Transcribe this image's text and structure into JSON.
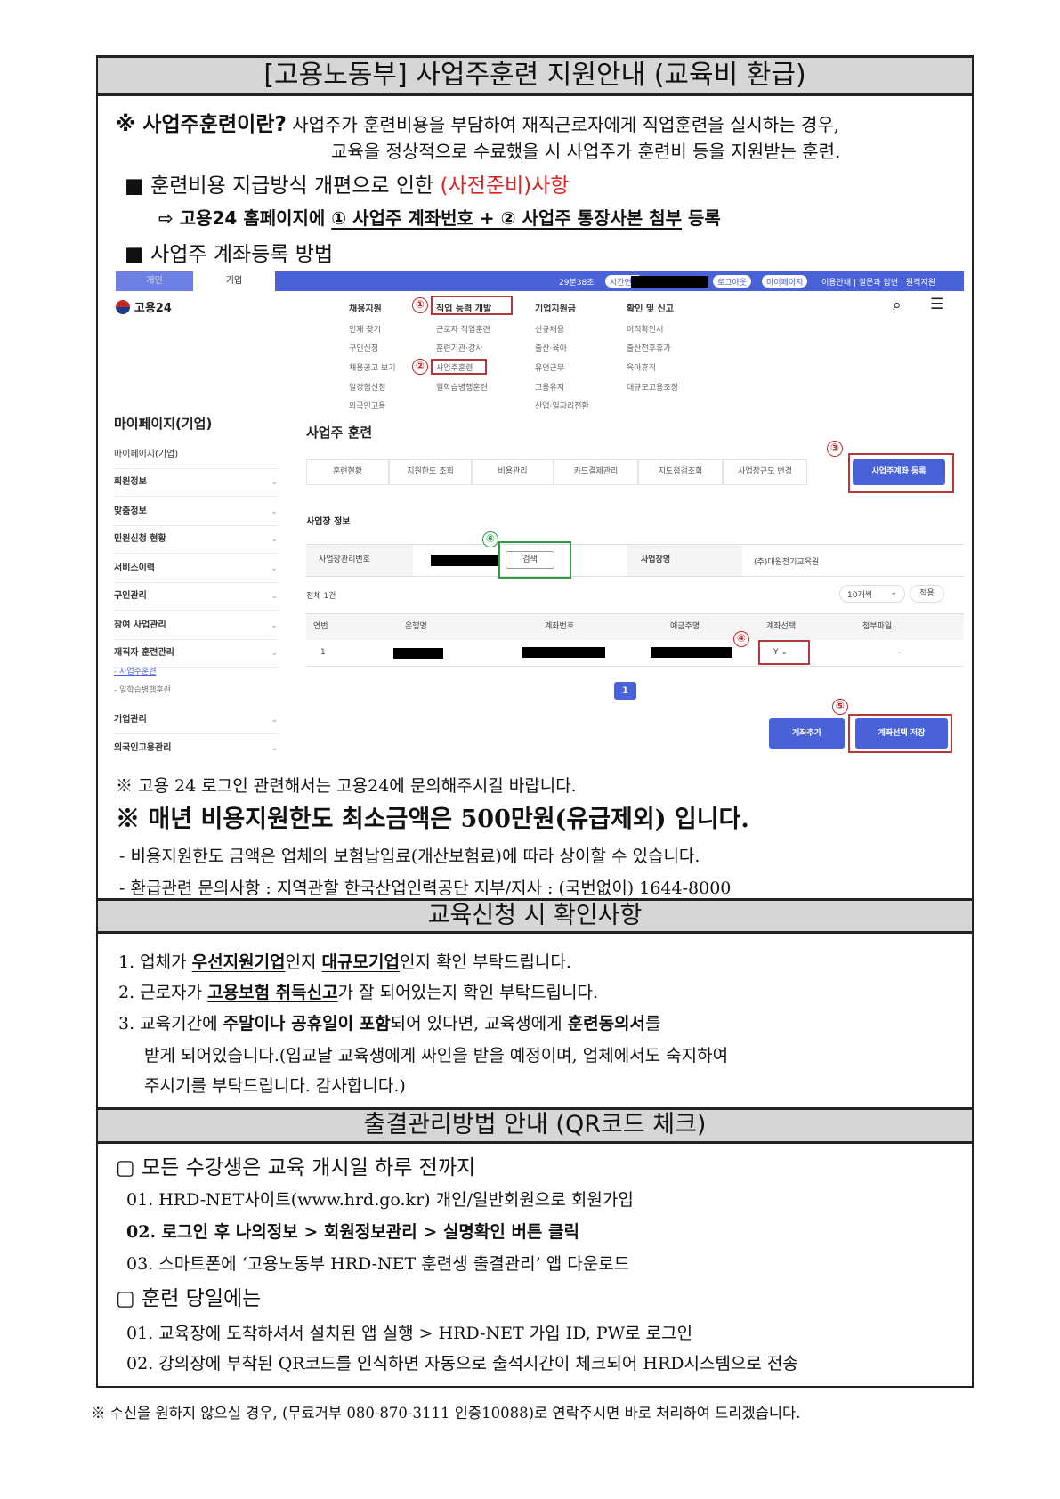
{
  "title": "[고용노동부] 사업주훈련 지원안내 (교육비 환급)",
  "intro": {
    "label": "※ 사업주훈련이란?",
    "line1": "사업주가 훈련비용을 부담하여 재직근로자에게 직업훈련을 실시하는 경우,",
    "line2": "교육을 정상적으로 수료했을 시 사업주가 훈련비 등을 지원받는 훈련."
  },
  "notice": {
    "bullet1_prefix": "■ 훈련비용 지급방식 개편으로 인한 ",
    "bullet1_red": "(사전준비)사항",
    "arrow_prefix": "⇨ 고용24 홈페이지에 ",
    "arrow_underlined": "① 사업주 계좌번호 + ② 사업주 통장사본 첨부",
    "arrow_suffix": " 등록",
    "bullet2": "■ 사업주 계좌등록 방법"
  },
  "screenshot": {
    "tabs": [
      "개인",
      "기업"
    ],
    "timer": "29분38초",
    "extend": "시간연장",
    "logout": "로그아웃",
    "mypage": "마이페이지",
    "util_links": "이용안내 | 질문과 답변 | 원격지원",
    "logo": "고용24",
    "nav": [
      {
        "heading": "채용지원",
        "items": [
          "인재 찾기",
          "구인신청",
          "채용공고 보기",
          "일경험신청",
          "외국인고용"
        ]
      },
      {
        "heading": "직업 능력 개발",
        "items": [
          "근로자 직업훈련",
          "훈련기관·강사",
          "사업주훈련",
          "일학습병행훈련"
        ]
      },
      {
        "heading": "기업지원금",
        "items": [
          "신규채용",
          "출산·육아",
          "유연근무",
          "고용유지",
          "산업·일자리전환"
        ]
      },
      {
        "heading": "확인 및 신고",
        "items": [
          "이직확인서",
          "출산전후휴가",
          "육아휴직",
          "대규모고용조정"
        ]
      }
    ],
    "step_marks": [
      "①",
      "②",
      "③",
      "④",
      "⑤",
      "⑥"
    ],
    "sidebar_title": "마이페이지(기업)",
    "sidebar": [
      "마이페이지(기업)",
      "회원정보",
      "맞춤정보",
      "민원신청 현황",
      "서비스이력",
      "구인관리",
      "참여 사업관리",
      "재직자 훈련관리",
      "기업관리",
      "외국인고용관리"
    ],
    "sidebar_sub": [
      "- 사업주훈련",
      "- 일학습병행훈련"
    ],
    "page_title": "사업주 훈련",
    "page_tabs": [
      "훈련현황",
      "지원한도 조회",
      "비용관리",
      "카드결제관리",
      "지도점검조회",
      "사업장규모 변경",
      "사업주계좌 등록"
    ],
    "section_title": "사업장 정보",
    "field_mgmt_no": "사업장관리번호",
    "search_btn": "검색",
    "field_name": "사업장명",
    "company_name": "(주)대원전기교육원",
    "total": "전체 1건",
    "per_page": "10개씩",
    "apply": "적용",
    "columns": [
      "연번",
      "은행명",
      "계좌번호",
      "예금주명",
      "계좌선택",
      "첨부파일"
    ],
    "row": {
      "no": "1",
      "select": "Y",
      "file": "-"
    },
    "page": "1",
    "add_account": "계좌추가",
    "save_selection": "계좌선택 저장"
  },
  "notes": {
    "n1": "※ 고용 24 로그인 관련해서는 고용24에 문의해주시길 바랍니다.",
    "n2": "※ 매년 비용지원한도 최소금액은 500만원(유급제외) 입니다.",
    "n3": "- 비용지원한도 금액은 업체의 보험납입료(개산보험료)에 따라 상이할 수 있습니다.",
    "n4": "- 환급관련 문의사항 : 지역관할 한국산업인력공단 지부/지사 : (국번없이) 1644-8000"
  },
  "section2": {
    "title": "교육신청 시 확인사항",
    "i1": [
      "1. 업체가 ",
      "우선지원기업",
      "인지 ",
      "대규모기업",
      "인지 확인 부탁드립니다."
    ],
    "i2": [
      "2. 근로자가 ",
      "고용보험 취득신고",
      "가 잘 되어있는지 확인 부탁드립니다."
    ],
    "i3": [
      "3. 교육기간에 ",
      "주말이나 공휴일이 포함",
      "되어 있다면, 교육생에게 ",
      "훈련동의서",
      "를"
    ],
    "i3b": "받게 되어있습니다.(입교날 교육생에게 싸인을 받을 예정이며, 업체에서도 숙지하여",
    "i3c": "주시기를 부탁드립니다. 감사합니다.)"
  },
  "section3": {
    "title": "출결관리방법 안내 (QR코드 체크)",
    "h1": "▢ 모든 수강생은 교육 개시일 하루 전까지",
    "s1": "01. HRD-NET사이트(www.hrd.go.kr) 개인/일반회원으로 회원가입",
    "s2": "02. 로그인 후 나의정보 > 회원정보관리 > 실명확인 버튼 클릭",
    "s3": "03. 스마트폰에 ‘고용노동부 HRD-NET 훈련생 출결관리’ 앱 다운로드",
    "h2": "▢ 훈련 당일에는",
    "t1": "01. 교육장에 도착하셔서 설치된 앱 실행 > HRD-NET 가입 ID, PW로 로그인",
    "t2": "02. 강의장에 부착된 QR코드를 인식하면 자동으로 출석시간이 체크되어 HRD시스템으로 전송"
  },
  "footer": "※ 수신을 원하지 않으실 경우, (무료거부 080-870-3111 인증10088)로 연락주시면 바로 처리하여 드리겠습니다.",
  "colors": {
    "accent_red": "#e02020",
    "brand_blue": "#4a62d8",
    "highlight_green": "#2e9a44",
    "header_gray": "#d6d6d6"
  }
}
